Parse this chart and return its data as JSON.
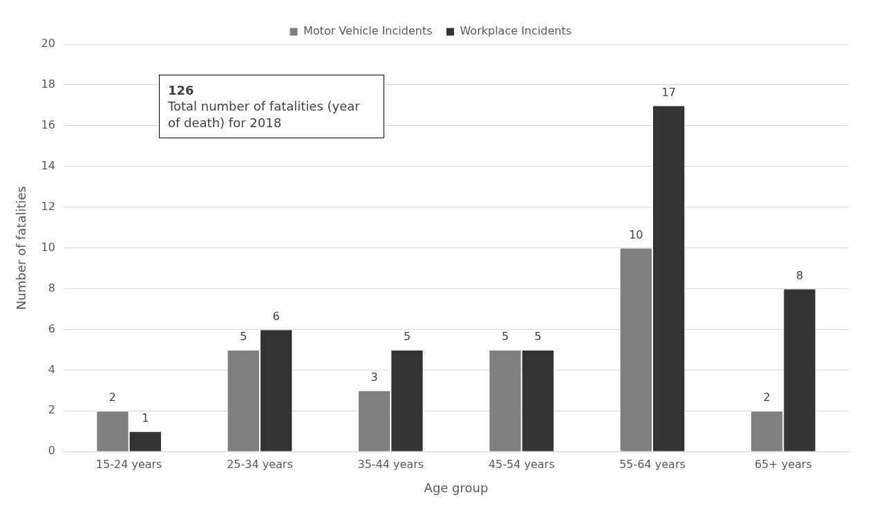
{
  "chart_data": {
    "type": "bar",
    "categories": [
      "15-24 years",
      "25-34 years",
      "35-44 years",
      "45-54 years",
      "55-64 years",
      "65+ years"
    ],
    "series": [
      {
        "name": "Motor Vehicle Incidents",
        "color": "#808080",
        "values": [
          2,
          5,
          3,
          5,
          10,
          2
        ]
      },
      {
        "name": "Workplace Incidents",
        "color": "#333333",
        "values": [
          1,
          6,
          5,
          5,
          17,
          8
        ]
      }
    ],
    "xlabel": "Age group",
    "ylabel": "Number of fatalities",
    "ylim": [
      0,
      20
    ],
    "yticks": [
      0,
      2,
      4,
      6,
      8,
      10,
      12,
      14,
      16,
      18,
      20
    ],
    "grid": "y",
    "legend": "top",
    "data_labels": true,
    "annotations": [
      "126",
      "Total number of fatalities (year of death) for 2018"
    ]
  }
}
